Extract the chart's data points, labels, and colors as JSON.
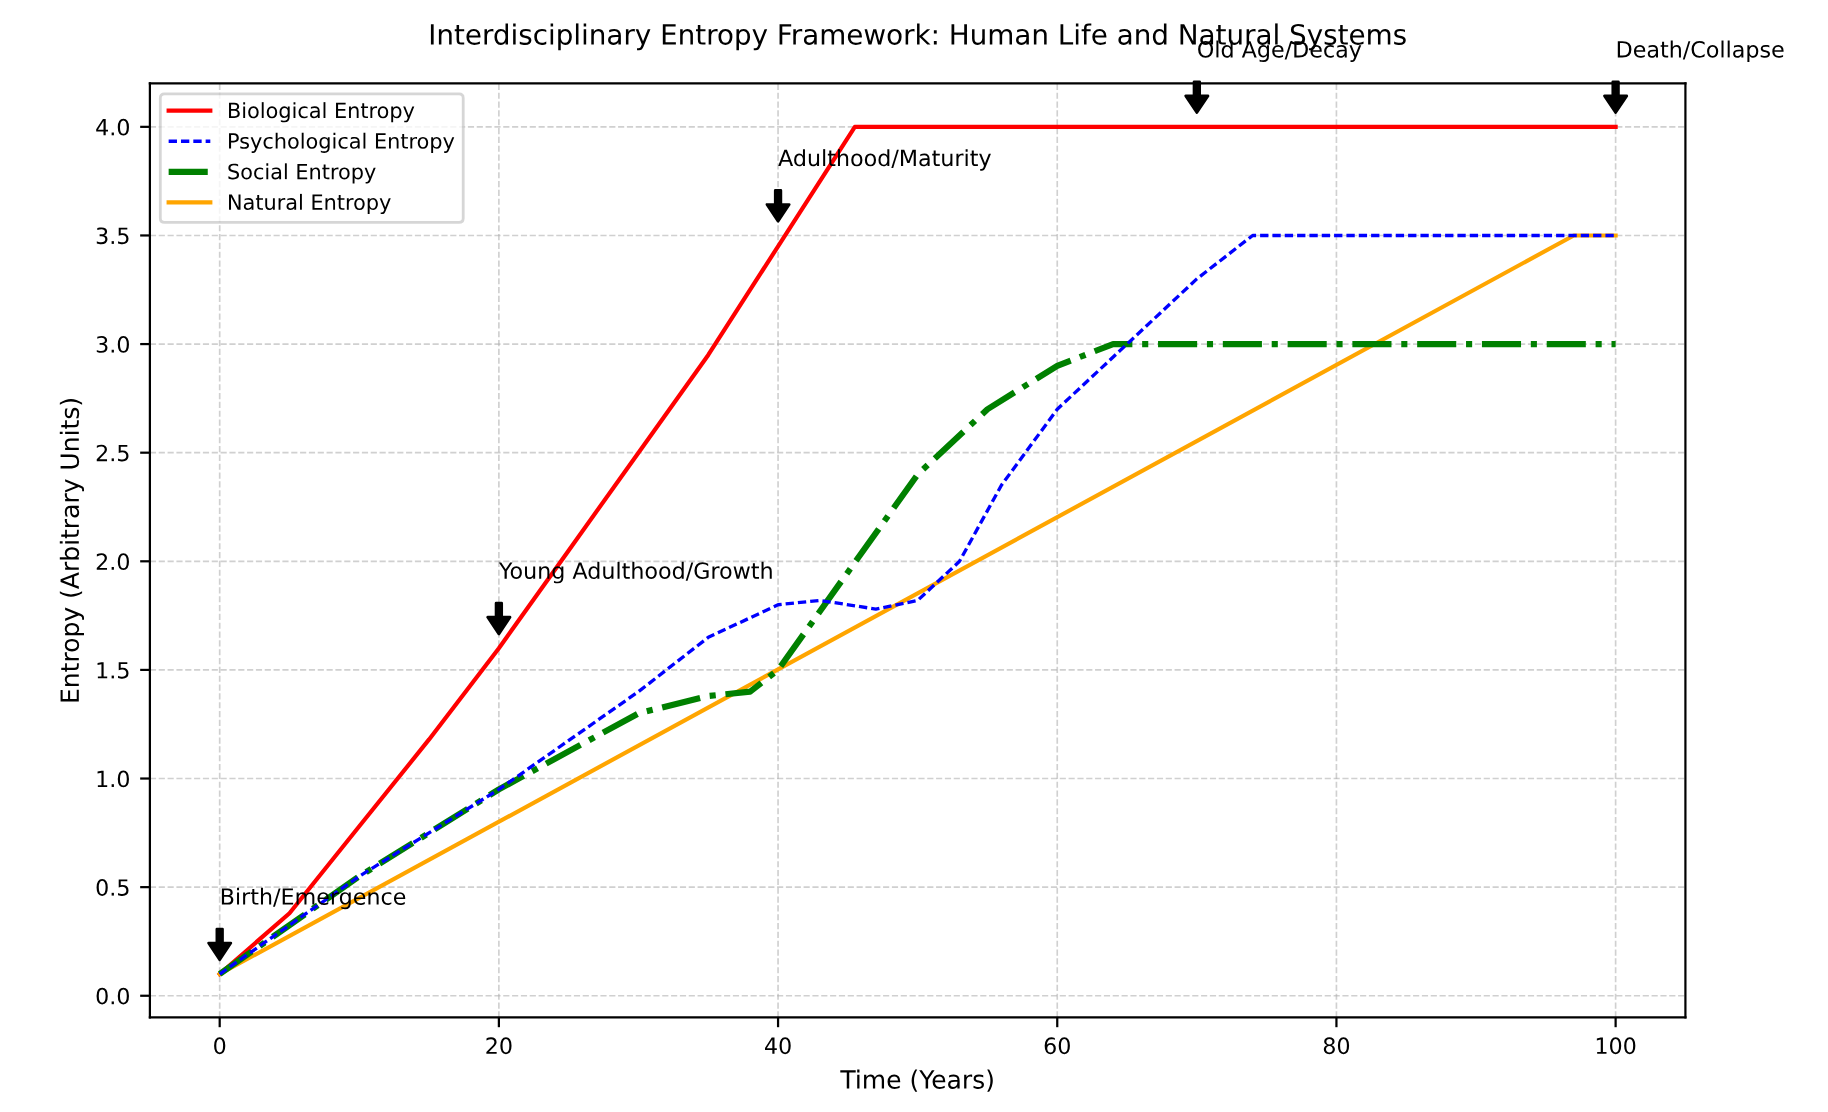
{
  "chart_data": {
    "type": "line",
    "title": "Interdisciplinary Entropy Framework: Human Life and Natural Systems",
    "xlabel": "Time (Years)",
    "ylabel": "Entropy (Arbitrary Units)",
    "xlim": [
      -5,
      105
    ],
    "ylim": [
      -0.1,
      4.2
    ],
    "xticks": [
      0,
      20,
      40,
      60,
      80,
      100
    ],
    "yticks": [
      {
        "value": 0,
        "label": "0.0"
      },
      0.5,
      {
        "value": 1,
        "label": "1.0"
      },
      1.5,
      {
        "value": 2,
        "label": "2.0"
      },
      2.5,
      {
        "value": 3,
        "label": "3.0"
      },
      3.5,
      {
        "value": 4,
        "label": "4.0"
      }
    ],
    "grid": true,
    "legend": "top left",
    "series": [
      {
        "name": "Biological Entropy",
        "color": "#ff0000",
        "line_style": "solid",
        "x": [
          0,
          5,
          10,
          15,
          20,
          25,
          30,
          35,
          40,
          45.5,
          100
        ],
        "values": [
          0.1,
          0.38,
          0.78,
          1.18,
          1.6,
          2.05,
          2.5,
          2.95,
          3.45,
          4.0,
          4.0
        ]
      },
      {
        "name": "Psychological Entropy",
        "color": "#0000ff",
        "line_style": "dashed",
        "x": [
          0,
          10,
          20,
          30,
          35,
          40,
          43,
          47,
          50,
          53,
          56,
          60,
          65,
          70,
          74,
          100
        ],
        "values": [
          0.1,
          0.55,
          0.95,
          1.4,
          1.65,
          1.8,
          1.82,
          1.78,
          1.82,
          2.0,
          2.35,
          2.7,
          3.0,
          3.3,
          3.5,
          3.5
        ]
      },
      {
        "name": "Social Entropy",
        "color": "#008000",
        "line_style": "dashdot",
        "x": [
          0,
          10,
          20,
          30,
          35,
          38,
          40,
          45,
          50,
          55,
          60,
          64,
          100
        ],
        "values": [
          0.1,
          0.55,
          0.95,
          1.3,
          1.38,
          1.4,
          1.5,
          1.95,
          2.4,
          2.7,
          2.9,
          3.0,
          3.0
        ]
      },
      {
        "name": "Natural Entropy",
        "color": "#ffa500",
        "line_style": "solid",
        "x": [
          0,
          97,
          100
        ],
        "values": [
          0.1,
          3.5,
          3.5
        ]
      }
    ],
    "annotations": [
      {
        "text": "Birth/Emergence",
        "x": 0,
        "y": 0.1
      },
      {
        "text": "Young Adulthood/Growth",
        "x": 20,
        "y": 1.6
      },
      {
        "text": "Adulthood/Maturity",
        "x": 40,
        "y": 3.5
      },
      {
        "text": "Old Age/Decay",
        "x": 70,
        "y": 4.0
      },
      {
        "text": "Death/Collapse",
        "x": 100,
        "y": 4.0
      }
    ]
  }
}
